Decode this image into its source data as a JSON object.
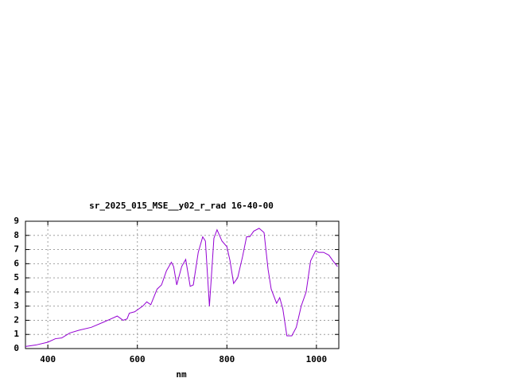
{
  "chart_data": {
    "type": "line",
    "title": "sr_2025_015_MSE__y02_r_rad 16-40-00",
    "x_label": "nm",
    "xlim": [
      350,
      1050
    ],
    "ylim": [
      0,
      9
    ],
    "xticks": [
      400,
      600,
      800,
      1000
    ],
    "yticks": [
      0,
      1,
      2,
      3,
      4,
      5,
      6,
      7,
      8,
      9
    ],
    "grid": true,
    "x": [
      350,
      373,
      400,
      417,
      431,
      449,
      470,
      497,
      523,
      541,
      555,
      568,
      577,
      582,
      594,
      612,
      621,
      630,
      644,
      654,
      665,
      676,
      681,
      688,
      699,
      708,
      718,
      725,
      736,
      746,
      752,
      761,
      771,
      778,
      789,
      800,
      807,
      815,
      824,
      835,
      844,
      851,
      860,
      872,
      883,
      892,
      899,
      911,
      918,
      925,
      934,
      945,
      955,
      966,
      977,
      987,
      998,
      1005,
      1016,
      1028,
      1037,
      1047
    ],
    "series": [
      {
        "color": "#9400d3",
        "values": [
          0.15,
          0.25,
          0.45,
          0.7,
          0.75,
          1.1,
          1.3,
          1.5,
          1.85,
          2.1,
          2.3,
          2.0,
          2.1,
          2.5,
          2.6,
          3.0,
          3.3,
          3.1,
          4.2,
          4.5,
          5.5,
          6.1,
          5.8,
          4.5,
          5.8,
          6.3,
          4.4,
          4.5,
          6.8,
          7.9,
          7.6,
          3.0,
          7.8,
          8.4,
          7.6,
          7.2,
          6.2,
          4.6,
          5.0,
          6.5,
          7.9,
          7.9,
          8.3,
          8.5,
          8.2,
          5.6,
          4.2,
          3.2,
          3.6,
          2.8,
          0.9,
          0.9,
          1.5,
          3.0,
          4.0,
          6.2,
          6.9,
          6.8,
          6.8,
          6.6,
          6.2,
          5.8
        ]
      }
    ]
  }
}
